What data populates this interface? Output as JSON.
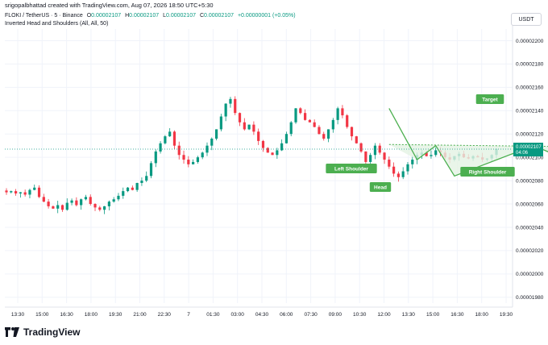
{
  "header": {
    "attribution": "srigopalbhattad created with TradingView.com, Aug 07, 2026 18:50 UTC+5:30",
    "symbol": "FLOKI / TetherUS · 5 · Binance",
    "ohlc": {
      "open_label": "O",
      "open": "0.00002107",
      "high_label": "H",
      "high": "0.00002107",
      "low_label": "L",
      "low": "0.00002107",
      "close_label": "C",
      "close": "0.00002107",
      "change": "+0.00000001 (+0.05%)"
    },
    "indicator": "Inverted Head and Shoulders (All, All, 50)",
    "currency": "USDT"
  },
  "price_badge": {
    "price": "0.00002107",
    "countdown": "04:06"
  },
  "pattern_labels": {
    "left_shoulder": "Left Shoulder",
    "head": "Head",
    "right_shoulder": "Right Shoulder",
    "target": "Target"
  },
  "footer": {
    "brand": "TradingView"
  },
  "colors": {
    "up": "#089981",
    "down": "#f23645",
    "pattern": "#4caf50",
    "pattern_fill": "#e3f3e4",
    "grid": "#f0f3fa",
    "badge": "#089981"
  },
  "chart_data": {
    "type": "candlestick",
    "y_ticks": [
      "0.00002200",
      "0.00002180",
      "0.00002160",
      "0.00002140",
      "0.00002120",
      "0.00002100",
      "0.00002080",
      "0.00002060",
      "0.00002040",
      "0.00002020",
      "0.00002000",
      "0.00001980"
    ],
    "ylim": [
      1.975e-05,
      2.21e-05
    ],
    "x_ticks": [
      "13:30",
      "15:00",
      "16:30",
      "18:00",
      "19:30",
      "21:00",
      "22:30",
      "7",
      "01:30",
      "03:00",
      "04:30",
      "06:00",
      "07:30",
      "09:00",
      "10:30",
      "12:00",
      "13:30",
      "15:00",
      "16:30",
      "18:00",
      "19:30"
    ],
    "last_price": 2.107e-05,
    "path_close": [
      2.07e-05,
      2.071e-05,
      2.069e-05,
      2.07e-05,
      2.068e-05,
      2.072e-05,
      2.074e-05,
      2.066e-05,
      2.062e-05,
      2.058e-05,
      2.056e-05,
      2.059e-05,
      2.055e-05,
      2.061e-05,
      2.063e-05,
      2.059e-05,
      2.064e-05,
      2.066e-05,
      2.06e-05,
      2.057e-05,
      2.055e-05,
      2.058e-05,
      2.062e-05,
      2.064e-05,
      2.067e-05,
      2.071e-05,
      2.074e-05,
      2.072e-05,
      2.078e-05,
      2.08e-05,
      2.084e-05,
      2.095e-05,
      2.105e-05,
      2.112e-05,
      2.118e-05,
      2.122e-05,
      2.11e-05,
      2.102e-05,
      2.098e-05,
      2.094e-05,
      2.096e-05,
      2.1e-05,
      2.104e-05,
      2.11e-05,
      2.116e-05,
      2.124e-05,
      2.135e-05,
      2.146e-05,
      2.15e-05,
      2.138e-05,
      2.13e-05,
      2.124e-05,
      2.128e-05,
      2.122e-05,
      2.114e-05,
      2.108e-05,
      2.104e-05,
      2.102e-05,
      2.106e-05,
      2.112e-05,
      2.12e-05,
      2.13e-05,
      2.142e-05,
      2.138e-05,
      2.132e-05,
      2.13e-05,
      2.126e-05,
      2.12e-05,
      2.116e-05,
      2.124e-05,
      2.132e-05,
      2.142e-05,
      2.136e-05,
      2.126e-05,
      2.118e-05,
      2.112e-05,
      2.105e-05,
      2.096e-05,
      2.102e-05,
      2.11e-05,
      2.104e-05,
      2.098e-05,
      2.092e-05,
      2.086e-05,
      2.083e-05,
      2.088e-05,
      2.094e-05,
      2.098e-05,
      2.102e-05,
      2.104e-05,
      2.101e-05,
      2.102e-05,
      2.106e-05,
      2.104e-05,
      2.1e-05,
      2.098e-05,
      2.101e-05,
      2.103e-05,
      2.1e-05,
      2.099e-05,
      2.101e-05,
      2.1e-05,
      2.098e-05,
      2.099e-05,
      2.102e-05,
      2.107e-05
    ],
    "pattern": {
      "points": [
        {
          "i": 82,
          "v": 2.142e-05
        },
        {
          "i": 88,
          "v": 2.098e-05
        },
        {
          "i": 92,
          "v": 2.11e-05
        },
        {
          "i": 96,
          "v": 2.084e-05
        },
        {
          "i": 113,
          "v": 2.11e-05
        },
        {
          "i": 120,
          "v": 2.098e-05
        },
        {
          "i": 124,
          "v": 2.107e-05
        }
      ],
      "neckline": [
        2.111e-05,
        2.109e-05
      ],
      "target": 2.14e-05
    }
  }
}
